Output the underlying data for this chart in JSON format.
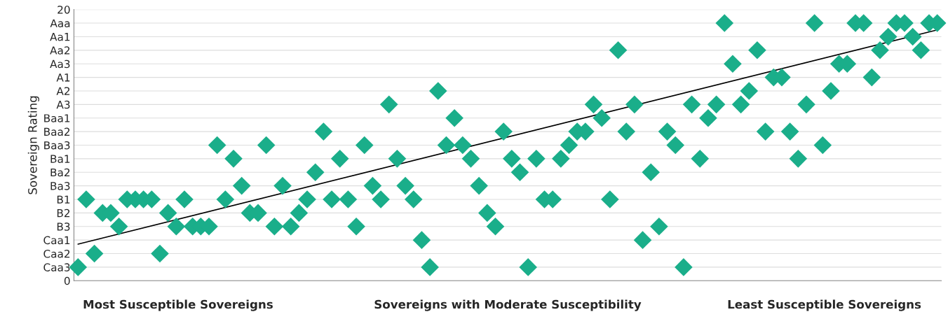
{
  "chart_data": {
    "type": "scatter",
    "ylabel": "Sovereign Rating",
    "grid": "y",
    "legend": false,
    "annotations": [
      "Most Susceptible Sovereigns",
      "Sovereigns with Moderate Susceptibility",
      "Least Susceptible Sovereigns"
    ],
    "categories": [
      null,
      null,
      null,
      null,
      null,
      null,
      null,
      null,
      null,
      null,
      null,
      null,
      null,
      null,
      null,
      null,
      null,
      null,
      null,
      null,
      null,
      null,
      null,
      null,
      null,
      null,
      null,
      null,
      null,
      null,
      null,
      null,
      null,
      null,
      null,
      null,
      null,
      null,
      null,
      null,
      null,
      null,
      null,
      null,
      null,
      null,
      null,
      null,
      null,
      null,
      null,
      null,
      null,
      null,
      null,
      null,
      null,
      null,
      null,
      null,
      null,
      null,
      null,
      null,
      null,
      null,
      null,
      null,
      null,
      null,
      null,
      null,
      null,
      null,
      null,
      null,
      null,
      null,
      null,
      null,
      null,
      null,
      null,
      null,
      null,
      null,
      null,
      null,
      null,
      null,
      null,
      null,
      null,
      null,
      null,
      null,
      null,
      null,
      null,
      null,
      null,
      null,
      null,
      null,
      null,
      null
    ],
    "ylim": [
      0,
      20
    ],
    "yticks": [
      {
        "value": 0,
        "label": "0"
      },
      {
        "value": 1,
        "label": "Caa3"
      },
      {
        "value": 2,
        "label": "Caa2"
      },
      {
        "value": 3,
        "label": "Caa1"
      },
      {
        "value": 4,
        "label": "B3"
      },
      {
        "value": 5,
        "label": "B2"
      },
      {
        "value": 6,
        "label": "B1"
      },
      {
        "value": 7,
        "label": "Ba3"
      },
      {
        "value": 8,
        "label": "Ba2"
      },
      {
        "value": 9,
        "label": "Ba1"
      },
      {
        "value": 10,
        "label": "Baa3"
      },
      {
        "value": 11,
        "label": "Baa2"
      },
      {
        "value": 12,
        "label": "Baa1"
      },
      {
        "value": 13,
        "label": "A3"
      },
      {
        "value": 14,
        "label": "A2"
      },
      {
        "value": 15,
        "label": "A1"
      },
      {
        "value": 16,
        "label": "Aa3"
      },
      {
        "value": 17,
        "label": "Aa2"
      },
      {
        "value": 18,
        "label": "Aa1"
      },
      {
        "value": 19,
        "label": "Aaa"
      },
      {
        "value": 20,
        "label": "20"
      }
    ],
    "series": [
      {
        "color": "#1aae8a",
        "marker": "diamond",
        "values": [
          1,
          6,
          2,
          5,
          5,
          4,
          6,
          6,
          6,
          6,
          2,
          5,
          4,
          6,
          4,
          4,
          4,
          10,
          6,
          9,
          7,
          5,
          5,
          10,
          4,
          7,
          4,
          5,
          6,
          8,
          11,
          6,
          9,
          6,
          4,
          10,
          7,
          6,
          13,
          9,
          7,
          6,
          3,
          1,
          14,
          10,
          12,
          10,
          9,
          7,
          5,
          4,
          11,
          9,
          8,
          1,
          9,
          6,
          6,
          9,
          10,
          11,
          11,
          13,
          12,
          6,
          17,
          11,
          13,
          3,
          8,
          4,
          11,
          10,
          1,
          13,
          9,
          12,
          13,
          19,
          16,
          13,
          14,
          17,
          11,
          15,
          15,
          11,
          9,
          13,
          19,
          10,
          14,
          16,
          16,
          19,
          19,
          15,
          17,
          18,
          19,
          19,
          18,
          17,
          19,
          19
        ]
      },
      {
        "type": "line",
        "color": "#000000",
        "values": [
          2.7,
          null,
          null,
          null,
          null,
          null,
          null,
          null,
          null,
          null,
          null,
          null,
          null,
          null,
          null,
          null,
          null,
          null,
          null,
          null,
          null,
          null,
          null,
          null,
          null,
          null,
          null,
          null,
          null,
          null,
          null,
          null,
          null,
          null,
          null,
          null,
          null,
          null,
          null,
          null,
          null,
          null,
          null,
          null,
          null,
          null,
          null,
          null,
          null,
          null,
          null,
          null,
          null,
          null,
          null,
          null,
          null,
          null,
          null,
          null,
          null,
          null,
          null,
          null,
          null,
          null,
          null,
          null,
          null,
          null,
          null,
          null,
          null,
          null,
          null,
          null,
          null,
          null,
          null,
          null,
          null,
          null,
          null,
          null,
          null,
          null,
          null,
          null,
          null,
          null,
          null,
          null,
          null,
          null,
          null,
          null,
          null,
          null,
          null,
          null,
          null,
          null,
          null,
          null,
          null,
          18.5
        ]
      }
    ]
  }
}
